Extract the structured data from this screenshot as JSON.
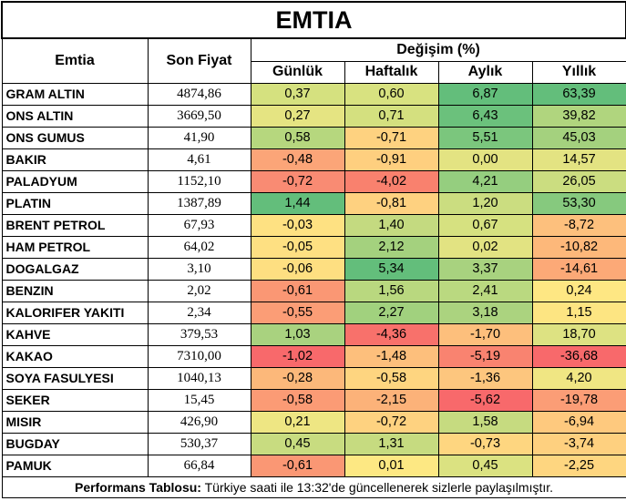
{
  "title": "EMTIA",
  "headers": {
    "commodity": "Emtia",
    "price": "Son Fiyat",
    "change_group": "Değişim (%)",
    "daily": "Günlük",
    "weekly": "Haftalık",
    "monthly": "Aylık",
    "yearly": "Yıllık"
  },
  "rows": [
    {
      "name": "GRAM ALTIN",
      "price": "4874,86",
      "daily": "0,37",
      "weekly": "0,60",
      "monthly": "6,87",
      "yearly": "63,39",
      "colors": {
        "daily": "#d5e17f",
        "weekly": "#d8e280",
        "monthly": "#63be7b",
        "yearly": "#63be7b"
      }
    },
    {
      "name": "ONS ALTIN",
      "price": "3669,50",
      "daily": "0,27",
      "weekly": "0,71",
      "monthly": "6,43",
      "yearly": "39,82",
      "colors": {
        "daily": "#e5e482",
        "weekly": "#d4e07f",
        "monthly": "#6bc17c",
        "yearly": "#b0d57e"
      }
    },
    {
      "name": "ONS GUMUS",
      "price": "41,90",
      "daily": "0,58",
      "weekly": "-0,71",
      "monthly": "5,51",
      "yearly": "45,03",
      "colors": {
        "daily": "#b6d77e",
        "weekly": "#fed280",
        "monthly": "#7bc67d",
        "yearly": "#a4d17e"
      }
    },
    {
      "name": "BAKIR",
      "price": "4,61",
      "daily": "-0,48",
      "weekly": "-0,91",
      "monthly": "0,00",
      "yearly": "14,57",
      "colors": {
        "daily": "#fba578",
        "weekly": "#fecf7f",
        "monthly": "#e3e382",
        "yearly": "#e3e382"
      }
    },
    {
      "name": "PALADYUM",
      "price": "1152,10",
      "daily": "-0,72",
      "weekly": "-4,02",
      "monthly": "4,21",
      "yearly": "26,05",
      "colors": {
        "daily": "#f98b73",
        "weekly": "#f9816e",
        "monthly": "#95ce7f",
        "yearly": "#cbdd80"
      }
    },
    {
      "name": "PLATIN",
      "price": "1387,89",
      "daily": "1,44",
      "weekly": "-0,81",
      "monthly": "1,20",
      "yearly": "53,30",
      "colors": {
        "daily": "#63be7b",
        "weekly": "#fed180",
        "monthly": "#cbdd80",
        "yearly": "#86c97e"
      }
    },
    {
      "name": "BRENT PETROL",
      "price": "67,93",
      "daily": "-0,03",
      "weekly": "1,40",
      "monthly": "0,67",
      "yearly": "-8,72",
      "colors": {
        "daily": "#fee182",
        "weekly": "#c4da80",
        "monthly": "#d6e180",
        "yearly": "#fdc07d"
      }
    },
    {
      "name": "HAM PETROL",
      "price": "64,02",
      "daily": "-0,05",
      "weekly": "2,12",
      "monthly": "0,02",
      "yearly": "-10,82",
      "colors": {
        "daily": "#fee082",
        "weekly": "#a4d17e",
        "monthly": "#e2e382",
        "yearly": "#fdb87a"
      }
    },
    {
      "name": "DOGALGAZ",
      "price": "3,10",
      "daily": "-0,06",
      "weekly": "5,34",
      "monthly": "3,37",
      "yearly": "-14,61",
      "colors": {
        "daily": "#fedf81",
        "weekly": "#63be7b",
        "monthly": "#a8d27f",
        "yearly": "#fca977"
      }
    },
    {
      "name": "BENZIN",
      "price": "2,02",
      "daily": "-0,61",
      "weekly": "1,56",
      "monthly": "2,41",
      "yearly": "0,24",
      "colors": {
        "daily": "#fa9774",
        "weekly": "#b9d87f",
        "monthly": "#bad980",
        "yearly": "#fee783"
      }
    },
    {
      "name": "KALORIFER YAKITI",
      "price": "2,34",
      "daily": "-0,55",
      "weekly": "2,27",
      "monthly": "3,18",
      "yearly": "1,15",
      "colors": {
        "daily": "#fb9d76",
        "weekly": "#a1d17e",
        "monthly": "#abd37f",
        "yearly": "#fde582"
      }
    },
    {
      "name": "KAHVE",
      "price": "379,53",
      "daily": "1,03",
      "weekly": "-4,36",
      "monthly": "-1,70",
      "yearly": "18,70",
      "colors": {
        "daily": "#a9d27f",
        "weekly": "#f8716b",
        "monthly": "#fdbf7c",
        "yearly": "#dde282"
      }
    },
    {
      "name": "KAKAO",
      "price": "7310,00",
      "daily": "-1,02",
      "weekly": "-1,48",
      "monthly": "-5,19",
      "yearly": "-36,68",
      "colors": {
        "daily": "#f8696b",
        "weekly": "#fdbf7c",
        "monthly": "#f98370",
        "yearly": "#f8696b"
      }
    },
    {
      "name": "SOYA FASULYESI",
      "price": "1040,13",
      "daily": "-0,28",
      "weekly": "-0,58",
      "monthly": "-1,36",
      "yearly": "4,20",
      "colors": {
        "daily": "#fcb87a",
        "weekly": "#fed580",
        "monthly": "#fdc67e",
        "yearly": "#f0e683"
      }
    },
    {
      "name": "SEKER",
      "price": "15,45",
      "daily": "-0,58",
      "weekly": "-2,15",
      "monthly": "-5,62",
      "yearly": "-19,78",
      "colors": {
        "daily": "#fb9b75",
        "weekly": "#fcb279",
        "monthly": "#f8696b",
        "yearly": "#fb9d76"
      }
    },
    {
      "name": "MISIR",
      "price": "426,90",
      "daily": "0,21",
      "weekly": "-0,72",
      "monthly": "1,58",
      "yearly": "-6,94",
      "colors": {
        "daily": "#eee683",
        "weekly": "#fed280",
        "monthly": "#c6db80",
        "yearly": "#fec97e"
      }
    },
    {
      "name": "BUGDAY",
      "price": "530,37",
      "daily": "0,45",
      "weekly": "1,31",
      "monthly": "-0,73",
      "yearly": "-3,74",
      "colors": {
        "daily": "#c8dc80",
        "weekly": "#c6db80",
        "monthly": "#fed680",
        "yearly": "#fed07f"
      }
    },
    {
      "name": "PAMUK",
      "price": "66,84",
      "daily": "-0,61",
      "weekly": "0,01",
      "monthly": "0,45",
      "yearly": "-2,25",
      "colors": {
        "daily": "#fa9774",
        "weekly": "#fde883",
        "monthly": "#dbe281",
        "yearly": "#fed680"
      }
    }
  ],
  "footer": {
    "label": "Performans Tablosu:",
    "text": " Türkiye saati ile 13:32'de güncellenerek sizlerle paylaşılmıştır."
  }
}
